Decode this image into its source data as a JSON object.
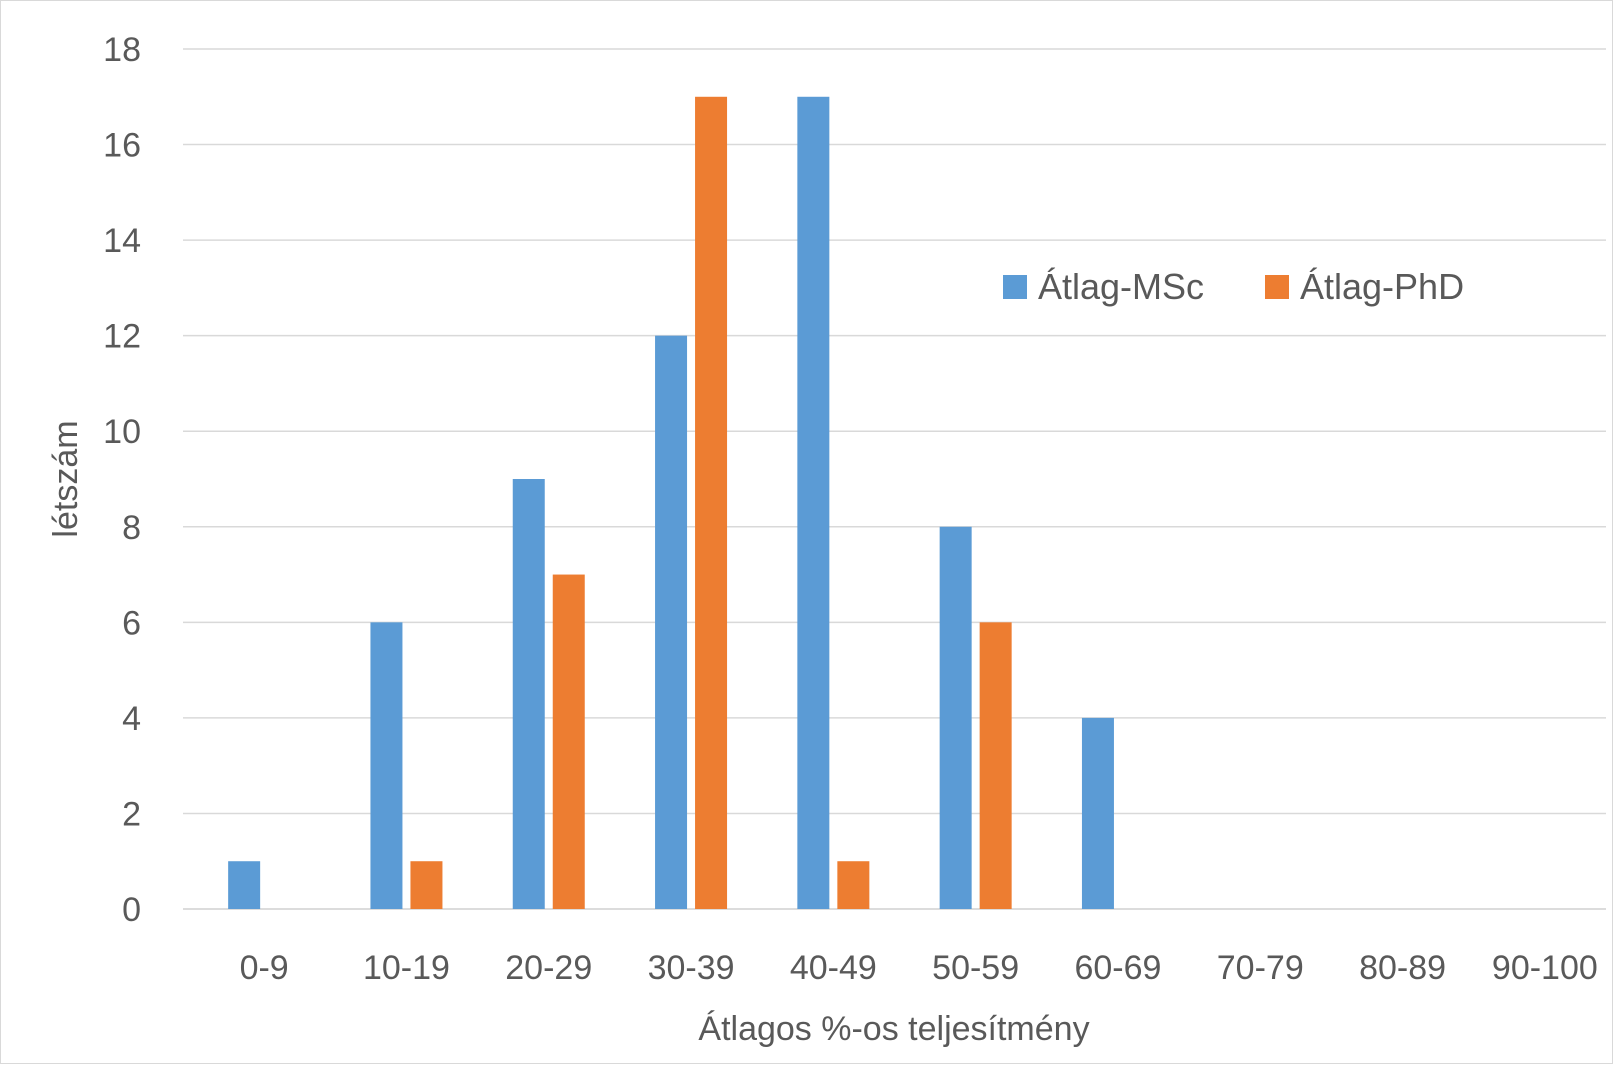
{
  "chart_data": {
    "type": "bar",
    "title": "",
    "xlabel": "Átlagos %-os teljesítmény",
    "ylabel": "létszám",
    "categories": [
      "0-9",
      "10-19",
      "20-29",
      "30-39",
      "40-49",
      "50-59",
      "60-69",
      "70-79",
      "80-89",
      "90-100"
    ],
    "series": [
      {
        "name": "Átlag-MSc",
        "color": "#5b9bd5",
        "values": [
          1,
          6,
          9,
          12,
          17,
          8,
          4,
          0,
          0,
          0
        ]
      },
      {
        "name": "Átlag-PhD",
        "color": "#ed7d31",
        "values": [
          0,
          1,
          7,
          17,
          1,
          6,
          0,
          0,
          0,
          0
        ]
      }
    ],
    "ylim": [
      0,
      18
    ],
    "yticks": [
      0,
      2,
      4,
      6,
      8,
      10,
      12,
      14,
      16,
      18
    ],
    "grid": true,
    "legend_position": "top-right"
  }
}
